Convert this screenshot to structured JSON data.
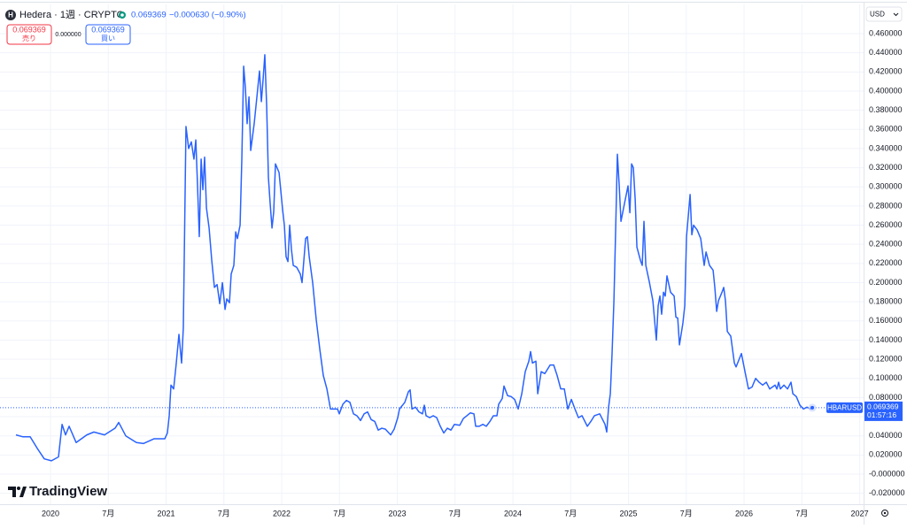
{
  "header": {
    "title": "Hedera · 1週 · CRYPTO",
    "change": "−0.000630 (−0.90%)"
  },
  "trade": {
    "sell_price": "0.069369",
    "sell_label": "売り",
    "spread": "0.000000",
    "buy_price": "0.069369",
    "buy_label": "買い"
  },
  "currency": "USD",
  "countdown": "01:57:16",
  "watermark": "TradingView",
  "chart_data": {
    "type": "line",
    "grid": true,
    "xlim": [
      2019.563,
      2027.034
    ],
    "ylim": [
      -0.0314,
      0.4905
    ],
    "xticks": [
      2020,
      {
        "value": 2020.5,
        "label": "7月"
      },
      2021,
      {
        "value": 2021.5,
        "label": "7月"
      },
      2022,
      {
        "value": 2022.5,
        "label": "7月"
      },
      2023,
      {
        "value": 2023.5,
        "label": "7月"
      },
      2024,
      {
        "value": 2024.5,
        "label": "7月"
      },
      2025,
      {
        "value": 2025.5,
        "label": "7月"
      },
      2026,
      {
        "value": 2026.5,
        "label": "7月"
      },
      2027
    ],
    "yticks": [
      {
        "value": -0.02,
        "label": "-0.020000"
      },
      {
        "value": 0,
        "label": "-0.000000"
      },
      {
        "value": 0.02,
        "label": "0.020000"
      },
      {
        "value": 0.04,
        "label": "0.040000"
      },
      {
        "value": 0.06,
        "label": "0.060000"
      },
      {
        "value": 0.08,
        "label": "0.080000"
      },
      {
        "value": 0.1,
        "label": "0.100000"
      },
      {
        "value": 0.12,
        "label": "0.120000"
      },
      {
        "value": 0.14,
        "label": "0.140000"
      },
      {
        "value": 0.16,
        "label": "0.160000"
      },
      {
        "value": 0.18,
        "label": "0.180000"
      },
      {
        "value": 0.2,
        "label": "0.200000"
      },
      {
        "value": 0.22,
        "label": "0.220000"
      },
      {
        "value": 0.24,
        "label": "0.240000"
      },
      {
        "value": 0.26,
        "label": "0.260000"
      },
      {
        "value": 0.28,
        "label": "0.280000"
      },
      {
        "value": 0.3,
        "label": "0.300000"
      },
      {
        "value": 0.32,
        "label": "0.320000"
      },
      {
        "value": 0.34,
        "label": "0.340000"
      },
      {
        "value": 0.36,
        "label": "0.360000"
      },
      {
        "value": 0.38,
        "label": "0.380000"
      },
      {
        "value": 0.4,
        "label": "0.400000"
      },
      {
        "value": 0.42,
        "label": "0.420000"
      },
      {
        "value": 0.44,
        "label": "0.440000"
      },
      {
        "value": 0.46,
        "label": "0.460000"
      }
    ],
    "series": [
      {
        "name": "HBARUSD",
        "color": "#2962ff",
        "x": [
          2019.701,
          2019.762,
          2019.824,
          2019.885,
          2019.946,
          2020.008,
          2020.069,
          2020.1,
          2020.13,
          2020.161,
          2020.222,
          2020.314,
          2020.375,
          2020.467,
          2020.559,
          2020.59,
          2020.651,
          2020.743,
          2020.805,
          2020.897,
          2020.989,
          2021.011,
          2021.027,
          2021.042,
          2021.065,
          2021.088,
          2021.111,
          2021.134,
          2021.149,
          2021.172,
          2021.195,
          2021.218,
          2021.241,
          2021.257,
          2021.272,
          2021.287,
          2021.303,
          2021.318,
          2021.333,
          2021.349,
          2021.372,
          2021.395,
          2021.418,
          2021.441,
          2021.464,
          2021.487,
          2021.51,
          2021.525,
          2021.548,
          2021.563,
          2021.586,
          2021.602,
          2021.617,
          2021.64,
          2021.655,
          2021.671,
          2021.686,
          2021.701,
          2021.717,
          2021.732,
          2021.762,
          2021.793,
          2021.808,
          2021.824,
          2021.839,
          2021.854,
          2021.87,
          2021.885,
          2021.9,
          2021.916,
          2021.931,
          2021.946,
          2021.977,
          2022.008,
          2022.023,
          2022.038,
          2022.054,
          2022.069,
          2022.084,
          2022.1,
          2022.13,
          2022.161,
          2022.176,
          2022.207,
          2022.222,
          2022.238,
          2022.268,
          2022.299,
          2022.33,
          2022.36,
          2022.391,
          2022.422,
          2022.452,
          2022.483,
          2022.498,
          2022.529,
          2022.56,
          2022.59,
          2022.621,
          2022.651,
          2022.682,
          2022.713,
          2022.743,
          2022.774,
          2022.805,
          2022.835,
          2022.866,
          2022.897,
          2022.943,
          2022.973,
          2023.004,
          2023.019,
          2023.065,
          2023.096,
          2023.111,
          2023.127,
          2023.157,
          2023.188,
          2023.218,
          2023.234,
          2023.249,
          2023.28,
          2023.31,
          2023.341,
          2023.372,
          2023.402,
          2023.433,
          2023.464,
          2023.494,
          2023.54,
          2023.571,
          2023.602,
          2023.632,
          2023.663,
          2023.678,
          2023.709,
          2023.74,
          2023.77,
          2023.801,
          2023.831,
          2023.862,
          2023.877,
          2023.908,
          2023.923,
          2023.954,
          2023.985,
          2024.015,
          2024.046,
          2024.077,
          2024.107,
          2024.138,
          2024.153,
          2024.169,
          2024.199,
          2024.215,
          2024.245,
          2024.276,
          2024.322,
          2024.353,
          2024.383,
          2024.414,
          2024.445,
          2024.475,
          2024.506,
          2024.537,
          2024.567,
          2024.598,
          2024.644,
          2024.674,
          2024.705,
          2024.751,
          2024.797,
          2024.812,
          2024.828,
          2024.843,
          2024.858,
          2024.874,
          2024.889,
          2024.904,
          2024.92,
          2024.935,
          2024.966,
          2024.996,
          2025.012,
          2025.027,
          2025.042,
          2025.058,
          2025.073,
          2025.104,
          2025.119,
          2025.134,
          2025.15,
          2025.18,
          2025.211,
          2025.241,
          2025.257,
          2025.272,
          2025.287,
          2025.303,
          2025.318,
          2025.333,
          2025.364,
          2025.395,
          2025.41,
          2025.426,
          2025.441,
          2025.471,
          2025.487,
          2025.502,
          2025.517,
          2025.533,
          2025.548,
          2025.563,
          2025.594,
          2025.625,
          2025.655,
          2025.671,
          2025.701,
          2025.732,
          2025.747,
          2025.763,
          2025.778,
          2025.809,
          2025.824,
          2025.839,
          2025.855,
          2025.885,
          2025.916,
          2025.931,
          2025.977,
          2026.008,
          2026.038,
          2026.069,
          2026.1,
          2026.13,
          2026.161,
          2026.192,
          2026.222,
          2026.268,
          2026.284,
          2026.299,
          2026.314,
          2026.345,
          2026.376,
          2026.406,
          2026.422,
          2026.452,
          2026.483,
          2026.514,
          2026.544,
          2026.575,
          2026.59
        ],
        "values": [
          0.041,
          0.039,
          0.039,
          0.027,
          0.016,
          0.014,
          0.018,
          0.052,
          0.041,
          0.05,
          0.033,
          0.041,
          0.044,
          0.041,
          0.048,
          0.054,
          0.04,
          0.033,
          0.032,
          0.037,
          0.037,
          0.043,
          0.061,
          0.093,
          0.089,
          0.116,
          0.146,
          0.116,
          0.153,
          0.363,
          0.34,
          0.347,
          0.329,
          0.349,
          0.301,
          0.248,
          0.329,
          0.297,
          0.331,
          0.278,
          0.257,
          0.223,
          0.195,
          0.198,
          0.178,
          0.2,
          0.172,
          0.183,
          0.179,
          0.209,
          0.218,
          0.253,
          0.246,
          0.26,
          0.329,
          0.426,
          0.403,
          0.366,
          0.394,
          0.338,
          0.366,
          0.403,
          0.421,
          0.389,
          0.412,
          0.438,
          0.384,
          0.31,
          0.283,
          0.257,
          0.274,
          0.324,
          0.315,
          0.276,
          0.26,
          0.227,
          0.222,
          0.26,
          0.235,
          0.218,
          0.216,
          0.209,
          0.2,
          0.246,
          0.248,
          0.227,
          0.2,
          0.161,
          0.13,
          0.103,
          0.089,
          0.068,
          0.068,
          0.068,
          0.063,
          0.073,
          0.077,
          0.075,
          0.063,
          0.061,
          0.056,
          0.063,
          0.065,
          0.057,
          0.055,
          0.046,
          0.048,
          0.047,
          0.041,
          0.047,
          0.059,
          0.068,
          0.075,
          0.086,
          0.088,
          0.068,
          0.07,
          0.065,
          0.063,
          0.072,
          0.061,
          0.059,
          0.061,
          0.059,
          0.05,
          0.043,
          0.048,
          0.046,
          0.052,
          0.051,
          0.058,
          0.061,
          0.064,
          0.063,
          0.05,
          0.05,
          0.052,
          0.05,
          0.055,
          0.061,
          0.061,
          0.073,
          0.079,
          0.092,
          0.082,
          0.081,
          0.078,
          0.068,
          0.084,
          0.107,
          0.118,
          0.128,
          0.116,
          0.118,
          0.084,
          0.107,
          0.105,
          0.114,
          0.114,
          0.103,
          0.089,
          0.089,
          0.068,
          0.078,
          0.068,
          0.059,
          0.061,
          0.05,
          0.055,
          0.061,
          0.063,
          0.052,
          0.044,
          0.07,
          0.084,
          0.126,
          0.181,
          0.255,
          0.334,
          0.301,
          0.264,
          0.283,
          0.301,
          0.273,
          0.324,
          0.32,
          0.287,
          0.237,
          0.223,
          0.218,
          0.264,
          0.218,
          0.201,
          0.181,
          0.14,
          0.176,
          0.186,
          0.167,
          0.19,
          0.186,
          0.207,
          0.19,
          0.186,
          0.164,
          0.163,
          0.135,
          0.158,
          0.176,
          0.248,
          0.269,
          0.292,
          0.25,
          0.26,
          0.255,
          0.246,
          0.218,
          0.232,
          0.218,
          0.213,
          0.195,
          0.17,
          0.181,
          0.19,
          0.195,
          0.181,
          0.149,
          0.144,
          0.116,
          0.112,
          0.126,
          0.107,
          0.089,
          0.091,
          0.1,
          0.096,
          0.093,
          0.096,
          0.089,
          0.093,
          0.089,
          0.096,
          0.089,
          0.093,
          0.089,
          0.096,
          0.084,
          0.081,
          0.072,
          0.068,
          0.07,
          0.068,
          0.069369
        ]
      }
    ]
  }
}
